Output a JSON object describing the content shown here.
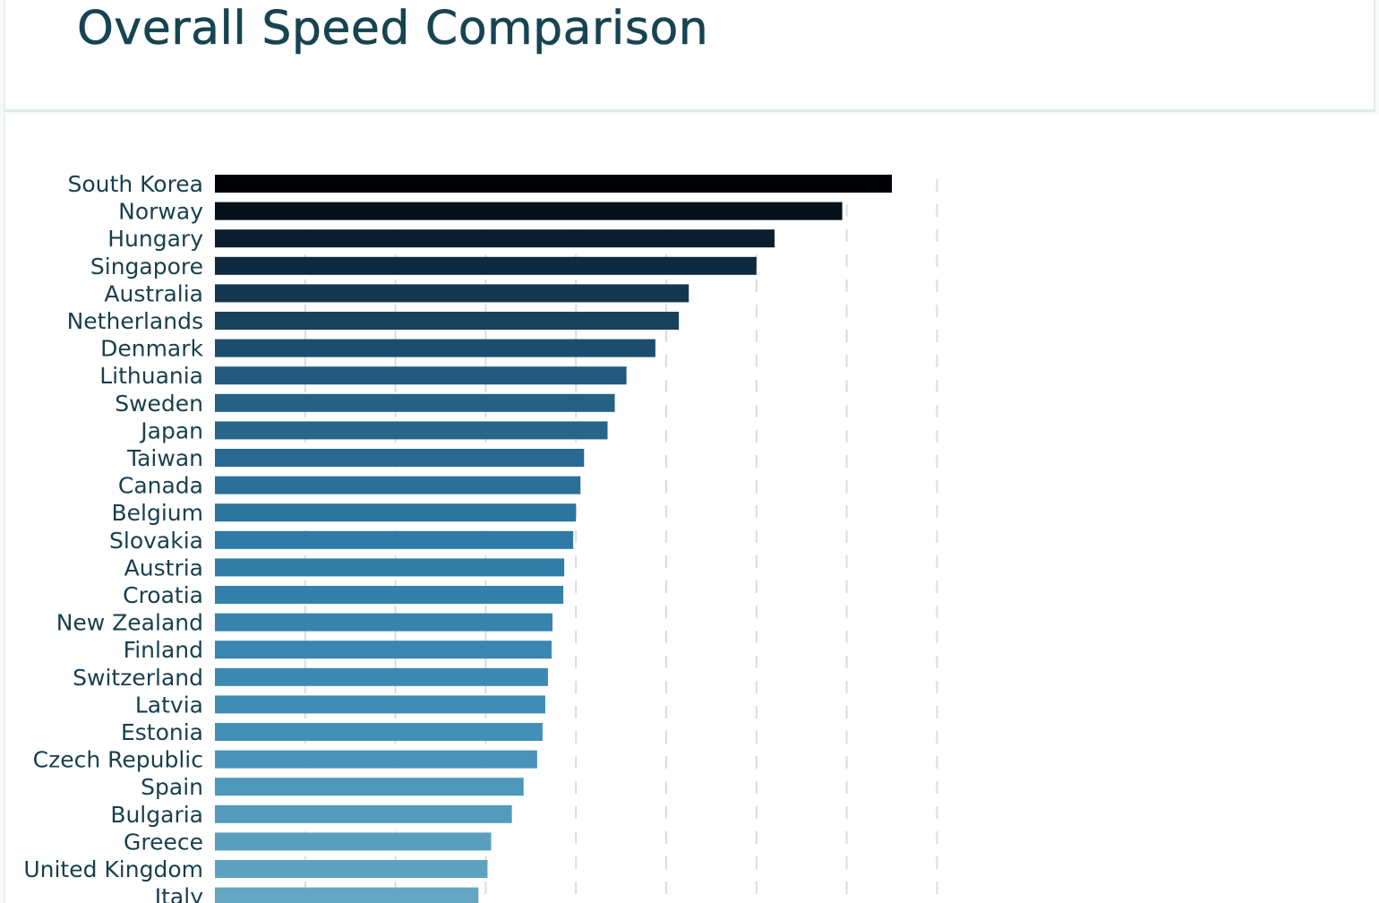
{
  "title": "Overall Speed Comparison",
  "chart_data": {
    "type": "bar",
    "orientation": "horizontal",
    "title": "Overall Speed Comparison",
    "xlabel": "",
    "ylabel": "",
    "grid": true,
    "xlim": [
      0,
      8
    ],
    "colors": {
      "darkest": "#020306",
      "lightest": "#65a6c2"
    },
    "categories": [
      "South Korea",
      "Norway",
      "Hungary",
      "Singapore",
      "Australia",
      "Netherlands",
      "Denmark",
      "Lithuania",
      "Sweden",
      "Japan",
      "Taiwan",
      "Canada",
      "Belgium",
      "Slovakia",
      "Austria",
      "Croatia",
      "New Zealand",
      "Finland",
      "Switzerland",
      "Latvia",
      "Estonia",
      "Czech Republic",
      "Spain",
      "Bulgaria",
      "Greece",
      "United Kingdom",
      "Italy"
    ],
    "values": [
      7.5,
      6.95,
      6.2,
      6.0,
      5.25,
      5.14,
      4.88,
      4.56,
      4.43,
      4.35,
      4.09,
      4.05,
      4.0,
      3.97,
      3.87,
      3.86,
      3.74,
      3.73,
      3.69,
      3.66,
      3.63,
      3.57,
      3.42,
      3.29,
      3.06,
      3.02,
      2.92
    ]
  }
}
